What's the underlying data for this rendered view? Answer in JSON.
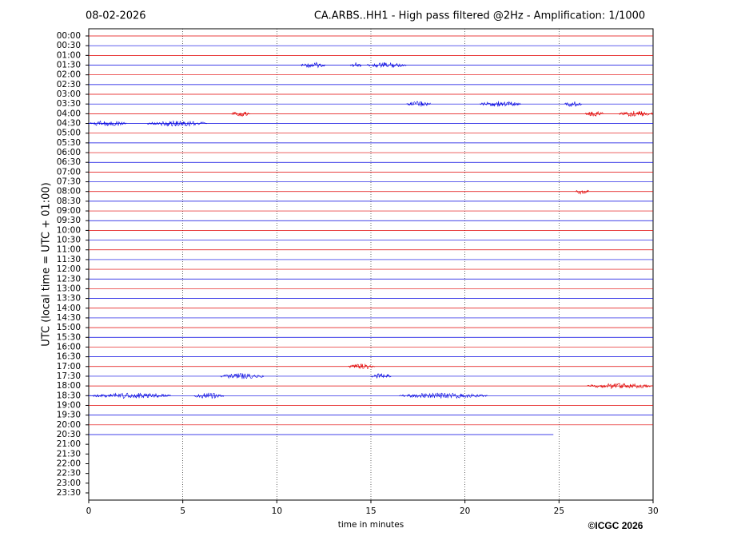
{
  "chart_data": {
    "type": "helicorder",
    "date": "08-02-2026",
    "title": "CA.ARBS..HH1 - High pass filtered @2Hz - Amplification: 1/1000",
    "xlabel": "time in minutes",
    "ylabel": "UTC (local time = UTC + 01:00)",
    "credit": "©ICGC 2026",
    "xlim": [
      0,
      30
    ],
    "xticks": [
      0,
      5,
      10,
      15,
      20,
      25,
      30
    ],
    "grid": true,
    "rows": [
      {
        "label": "00:00",
        "color": "#e00000",
        "end": 30
      },
      {
        "label": "00:30",
        "color": "#0000e0",
        "end": 30
      },
      {
        "label": "01:00",
        "color": "#e00000",
        "end": 30
      },
      {
        "label": "01:30",
        "color": "#0000e0",
        "end": 30
      },
      {
        "label": "02:00",
        "color": "#e00000",
        "end": 30
      },
      {
        "label": "02:30",
        "color": "#0000e0",
        "end": 30
      },
      {
        "label": "03:00",
        "color": "#e00000",
        "end": 30
      },
      {
        "label": "03:30",
        "color": "#0000e0",
        "end": 30
      },
      {
        "label": "04:00",
        "color": "#e00000",
        "end": 30
      },
      {
        "label": "04:30",
        "color": "#0000e0",
        "end": 30
      },
      {
        "label": "05:00",
        "color": "#e00000",
        "end": 30
      },
      {
        "label": "05:30",
        "color": "#0000e0",
        "end": 30
      },
      {
        "label": "06:00",
        "color": "#e00000",
        "end": 30
      },
      {
        "label": "06:30",
        "color": "#0000e0",
        "end": 30
      },
      {
        "label": "07:00",
        "color": "#e00000",
        "end": 30
      },
      {
        "label": "07:30",
        "color": "#0000e0",
        "end": 30
      },
      {
        "label": "08:00",
        "color": "#e00000",
        "end": 30
      },
      {
        "label": "08:30",
        "color": "#0000e0",
        "end": 30
      },
      {
        "label": "09:00",
        "color": "#e00000",
        "end": 30
      },
      {
        "label": "09:30",
        "color": "#0000e0",
        "end": 30
      },
      {
        "label": "10:00",
        "color": "#e00000",
        "end": 30
      },
      {
        "label": "10:30",
        "color": "#0000e0",
        "end": 30
      },
      {
        "label": "11:00",
        "color": "#e00000",
        "end": 30
      },
      {
        "label": "11:30",
        "color": "#0000e0",
        "end": 30
      },
      {
        "label": "12:00",
        "color": "#e00000",
        "end": 30
      },
      {
        "label": "12:30",
        "color": "#0000e0",
        "end": 30
      },
      {
        "label": "13:00",
        "color": "#e00000",
        "end": 30
      },
      {
        "label": "13:30",
        "color": "#0000e0",
        "end": 30
      },
      {
        "label": "14:00",
        "color": "#e00000",
        "end": 30
      },
      {
        "label": "14:30",
        "color": "#0000e0",
        "end": 30
      },
      {
        "label": "15:00",
        "color": "#e00000",
        "end": 30
      },
      {
        "label": "15:30",
        "color": "#0000e0",
        "end": 30
      },
      {
        "label": "16:00",
        "color": "#e00000",
        "end": 30
      },
      {
        "label": "16:30",
        "color": "#0000e0",
        "end": 30
      },
      {
        "label": "17:00",
        "color": "#e00000",
        "end": 30
      },
      {
        "label": "17:30",
        "color": "#0000e0",
        "end": 30
      },
      {
        "label": "18:00",
        "color": "#e00000",
        "end": 30
      },
      {
        "label": "18:30",
        "color": "#0000e0",
        "end": 30
      },
      {
        "label": "19:00",
        "color": "#e00000",
        "end": 30
      },
      {
        "label": "19:30",
        "color": "#0000e0",
        "end": 30
      },
      {
        "label": "20:00",
        "color": "#e00000",
        "end": 30
      },
      {
        "label": "20:30",
        "color": "#0000e0",
        "end": 24.7
      },
      {
        "label": "21:00",
        "color": "#e00000",
        "end": null
      },
      {
        "label": "21:30",
        "color": "#0000e0",
        "end": null
      },
      {
        "label": "22:00",
        "color": "#e00000",
        "end": null
      },
      {
        "label": "22:30",
        "color": "#0000e0",
        "end": null
      },
      {
        "label": "23:00",
        "color": "#e00000",
        "end": null
      },
      {
        "label": "23:30",
        "color": "#0000e0",
        "end": null
      }
    ],
    "bursts": [
      {
        "row": 3,
        "start": 11.3,
        "end": 12.6
      },
      {
        "row": 3,
        "start": 13.9,
        "end": 14.5
      },
      {
        "row": 3,
        "start": 14.8,
        "end": 16.9
      },
      {
        "row": 7,
        "start": 16.9,
        "end": 18.2
      },
      {
        "row": 7,
        "start": 20.8,
        "end": 23.0
      },
      {
        "row": 7,
        "start": 25.3,
        "end": 26.2
      },
      {
        "row": 8,
        "start": 7.6,
        "end": 8.6
      },
      {
        "row": 8,
        "start": 26.4,
        "end": 27.4
      },
      {
        "row": 8,
        "start": 28.2,
        "end": 30
      },
      {
        "row": 9,
        "start": 0,
        "end": 2.0
      },
      {
        "row": 9,
        "start": 3.1,
        "end": 6.3
      },
      {
        "row": 16,
        "start": 25.9,
        "end": 26.6
      },
      {
        "row": 34,
        "start": 13.8,
        "end": 15.2
      },
      {
        "row": 35,
        "start": 7.0,
        "end": 9.3
      },
      {
        "row": 35,
        "start": 15.0,
        "end": 16.1
      },
      {
        "row": 36,
        "start": 26.5,
        "end": 30
      },
      {
        "row": 37,
        "start": 0,
        "end": 4.4
      },
      {
        "row": 37,
        "start": 5.6,
        "end": 7.2
      },
      {
        "row": 37,
        "start": 16.5,
        "end": 21.2
      }
    ]
  }
}
